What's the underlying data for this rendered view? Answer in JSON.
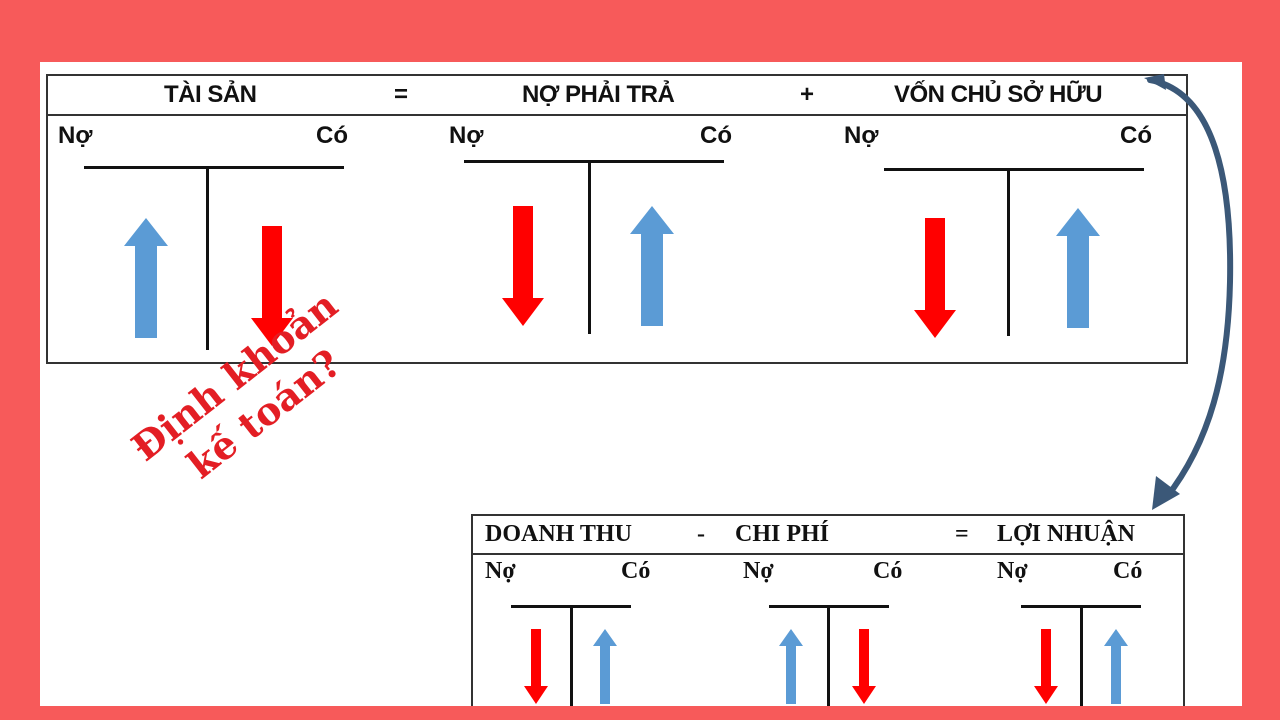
{
  "top_equation": {
    "assets": "TÀI SẢN",
    "equals": "=",
    "liabilities": "NỢ PHẢI TRẢ",
    "plus": "+",
    "equity": "VỐN CHỦ SỞ HỮU"
  },
  "bottom_equation": {
    "revenue": "DOANH THU",
    "minus": "-",
    "expense": "CHI PHÍ",
    "equals": "=",
    "profit": "LỢI NHUẬN"
  },
  "debit_label": "Nợ",
  "credit_label": "Có",
  "caption": {
    "line1": "Định khoản",
    "line2": "kế toán?"
  },
  "colors": {
    "background": "#f75a5a",
    "increase": "#5b9bd5",
    "decrease": "#ff0000",
    "caption": "#e31e24",
    "connector": "#3b5878"
  },
  "t_accounts": {
    "assets": {
      "debit": "increase",
      "credit": "decrease"
    },
    "liabilities": {
      "debit": "decrease",
      "credit": "increase"
    },
    "equity": {
      "debit": "decrease",
      "credit": "increase"
    },
    "revenue": {
      "debit": "decrease",
      "credit": "increase"
    },
    "expense": {
      "debit": "increase",
      "credit": "decrease"
    },
    "profit": {
      "debit": "decrease",
      "credit": "increase"
    }
  }
}
